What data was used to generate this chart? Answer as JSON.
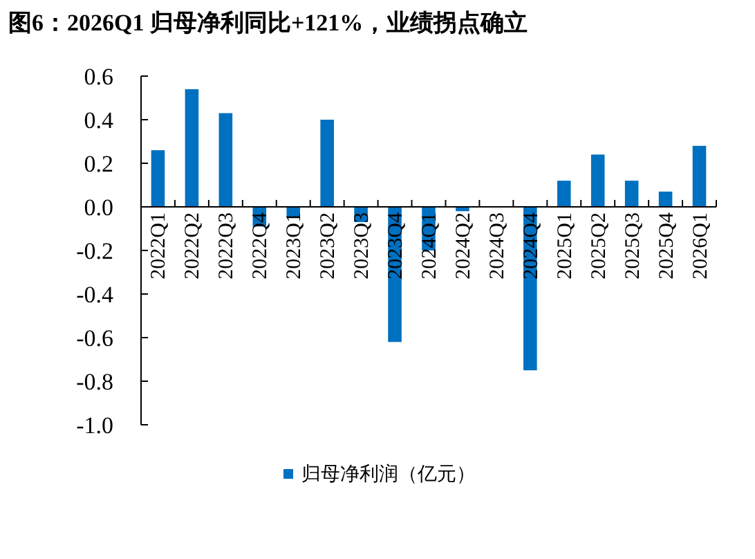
{
  "chart_data": {
    "type": "bar",
    "title": "图6：2026Q1 归母净利同比+121%，业绩拐点确立",
    "categories": [
      "2022Q1",
      "2022Q2",
      "2022Q3",
      "2022Q4",
      "2023Q1",
      "2023Q2",
      "2023Q3",
      "2023Q4",
      "2024Q1",
      "2024Q2",
      "2024Q3",
      "2024Q4",
      "2025Q1",
      "2025Q2",
      "2025Q3",
      "2025Q4",
      "2026Q1"
    ],
    "series": [
      {
        "name": "归母净利润（亿元）",
        "color": "#0070c0",
        "values": [
          0.26,
          0.54,
          0.43,
          -0.09,
          -0.05,
          0.4,
          -0.07,
          -0.62,
          -0.2,
          -0.02,
          0,
          -0.75,
          0.12,
          0.24,
          0.12,
          0.07,
          0.28
        ]
      }
    ],
    "ylim": [
      -1.0,
      0.6
    ],
    "yticks": [
      {
        "value": -1.0,
        "label": "-1.0"
      },
      {
        "value": -0.8,
        "label": "-0.8"
      },
      {
        "value": -0.6,
        "label": "-0.6"
      },
      {
        "value": -0.4,
        "label": "-0.4"
      },
      {
        "value": -0.2,
        "label": "-0.2"
      },
      {
        "value": 0,
        "label": "0.0"
      },
      {
        "value": 0.2,
        "label": "0.2"
      },
      {
        "value": 0.4,
        "label": "0.4"
      },
      {
        "value": 0.6,
        "label": "0.6"
      }
    ],
    "grid": false,
    "legend": "bottom"
  }
}
